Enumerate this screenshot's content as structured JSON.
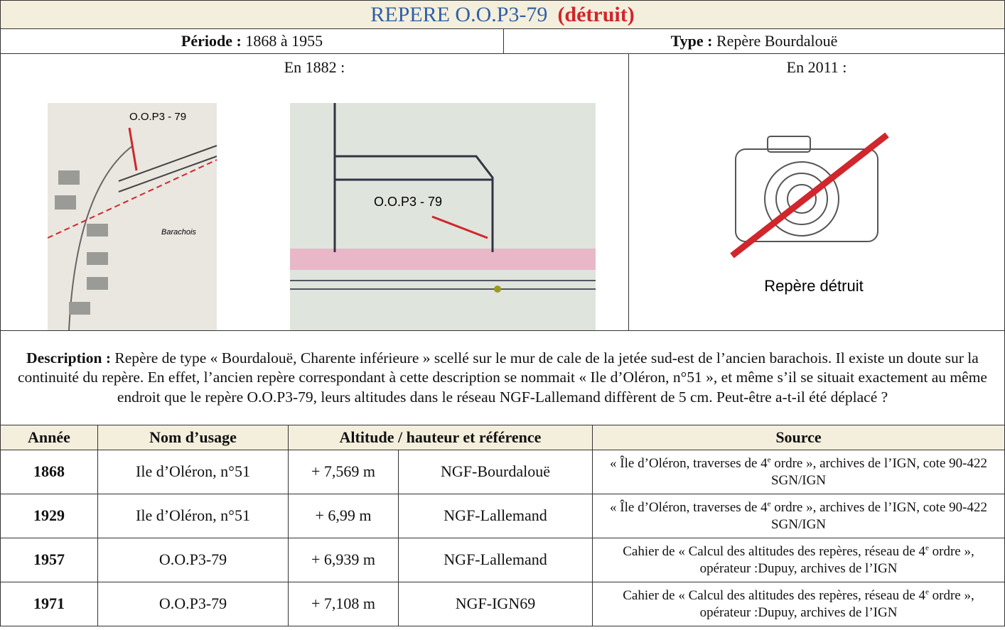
{
  "header": {
    "title": "REPERE O.O.P3-79",
    "status": "(détruit)"
  },
  "info": {
    "period_label": "Période :",
    "period": "1868 à 1955",
    "type_label": "Type :",
    "type": "Repère Bourdalouë"
  },
  "photos": {
    "before_label": "En 1882 :",
    "after_label": "En 2011 :",
    "map_labels": [
      "O.O.P3 - 79",
      "O.O.P3 - 79"
    ],
    "map_note": "Barachois",
    "placeholder": "Repère détruit"
  },
  "description": {
    "label": "Description :",
    "text": "Repère de type « Bourdalouë, Charente inférieure » scellé sur le mur de cale de la jetée sud-est de l’ancien barachois. Il existe un doute sur la continuité du repère. En effet, l’ancien repère correspondant à cette description se nommait « Ile d’Oléron, n°51 », et même s’il se situait exactement au même endroit que le repère O.O.P3-79, leurs altitudes dans le réseau NGF-Lallemand diffèrent de 5 cm. Peut-être a-t-il été déplacé ?"
  },
  "table": {
    "headers": [
      "Année",
      "Nom d’usage",
      "Altitude / hauteur et référence",
      "Source"
    ],
    "rows": [
      {
        "year": "1868",
        "name": "Ile d’Oléron, n°51",
        "altitude": "+ 7,569 m",
        "reference": "NGF-Bourdalouë",
        "source": [
          "« Île d’Oléron, traverses de 4",
          "e",
          " ordre », archives de l’IGN, cote 90-422 SGN/IGN"
        ]
      },
      {
        "year": "1929",
        "name": "Ile d’Oléron, n°51",
        "altitude": "+ 6,99 m",
        "reference": "NGF-Lallemand",
        "source": [
          "« Île d’Oléron, traverses de 4",
          "e",
          " ordre », archives de l’IGN, cote 90-422 SGN/IGN"
        ]
      },
      {
        "year": "1957",
        "name": "O.O.P3-79",
        "altitude": "+ 6,939 m",
        "reference": "NGF-Lallemand",
        "source": [
          "Cahier de « Calcul des altitudes des repères, réseau de 4",
          "e",
          " ordre », opérateur :Dupuy, archives de l’IGN"
        ]
      },
      {
        "year": "1971",
        "name": "O.O.P3-79",
        "altitude": "+ 7,108 m",
        "reference": "NGF-IGN69",
        "source": [
          "Cahier de « Calcul des altitudes des repères, réseau de 4",
          "e",
          " ordre », opérateur :Dupuy, archives de l’IGN"
        ]
      }
    ]
  }
}
